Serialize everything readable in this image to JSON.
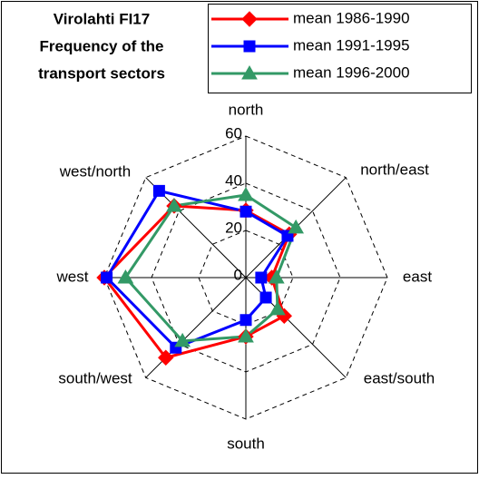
{
  "chart_data": {
    "type": "radar",
    "title": [
      "Virolahti FI17",
      "Frequency of the",
      "transport sectors"
    ],
    "categories": [
      "north",
      "north/east",
      "east",
      "east/south",
      "south",
      "south/west",
      "west",
      "west/north"
    ],
    "series": [
      {
        "name": "mean 1986-1990",
        "color": "#ff0000",
        "marker": "diamond",
        "values": [
          28.5,
          26,
          11,
          23,
          25,
          48,
          60,
          43
        ]
      },
      {
        "name": "mean 1991-1995",
        "color": "#0000ff",
        "marker": "square",
        "values": [
          28,
          25,
          6.5,
          12,
          18,
          42,
          59,
          52
        ]
      },
      {
        "name": "mean 1996-2000",
        "color": "#339966",
        "marker": "triangle",
        "values": [
          35,
          30,
          13,
          19,
          25,
          38,
          51,
          43
        ]
      }
    ],
    "ylim": [
      0,
      60
    ],
    "yticks": [
      0,
      20,
      40,
      60
    ],
    "grid": true
  }
}
